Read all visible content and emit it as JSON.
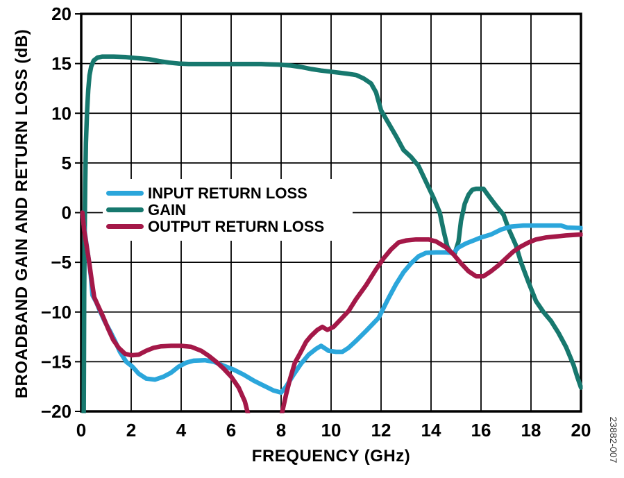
{
  "watermark": "23882-007",
  "chart_data": {
    "type": "line",
    "title": "",
    "xlabel": "FREQUENCY (GHz)",
    "ylabel": "BROADBAND GAIN AND RETURN LOSS (dB)",
    "xlim": [
      0,
      20
    ],
    "ylim": [
      -20,
      20
    ],
    "x_ticks": [
      0,
      2,
      4,
      6,
      8,
      10,
      12,
      14,
      16,
      18,
      20
    ],
    "y_ticks": [
      20,
      15,
      10,
      5,
      0,
      -5,
      -10,
      -15,
      -20
    ],
    "grid": true,
    "legend_position": "upper-left-inside",
    "grid_color": "#000000",
    "draw_order": [
      1,
      0,
      2
    ],
    "series": [
      {
        "name": "INPUT RETURN LOSS",
        "color": "#2BA6DB",
        "points": [
          [
            0.05,
            0
          ],
          [
            0.1,
            -1.2
          ],
          [
            0.2,
            -3
          ],
          [
            0.3,
            -4.7
          ],
          [
            0.38,
            -6.3
          ],
          [
            0.45,
            -8.3
          ],
          [
            0.6,
            -9
          ],
          [
            0.75,
            -9.9
          ],
          [
            0.95,
            -11
          ],
          [
            1.15,
            -11.9
          ],
          [
            1.35,
            -12.9
          ],
          [
            1.55,
            -14
          ],
          [
            1.8,
            -15
          ],
          [
            2.05,
            -15.5
          ],
          [
            2.3,
            -16.2
          ],
          [
            2.6,
            -16.7
          ],
          [
            2.95,
            -16.8
          ],
          [
            3.3,
            -16.5
          ],
          [
            3.6,
            -16.1
          ],
          [
            3.9,
            -15.5
          ],
          [
            4.2,
            -15.1
          ],
          [
            4.5,
            -14.9
          ],
          [
            4.95,
            -14.85
          ],
          [
            5.3,
            -15
          ],
          [
            5.7,
            -15.4
          ],
          [
            6.1,
            -15.8
          ],
          [
            6.5,
            -16.3
          ],
          [
            6.9,
            -16.9
          ],
          [
            7.3,
            -17.4
          ],
          [
            7.7,
            -17.9
          ],
          [
            8,
            -18.1
          ],
          [
            8.2,
            -17.5
          ],
          [
            8.5,
            -16.3
          ],
          [
            8.8,
            -15.2
          ],
          [
            9.1,
            -14.3
          ],
          [
            9.4,
            -13.7
          ],
          [
            9.6,
            -13.4
          ],
          [
            9.9,
            -13.9
          ],
          [
            10.2,
            -14
          ],
          [
            10.45,
            -14
          ],
          [
            10.7,
            -13.6
          ],
          [
            11,
            -12.9
          ],
          [
            11.4,
            -11.9
          ],
          [
            11.9,
            -10.6
          ],
          [
            12.3,
            -8.6
          ],
          [
            12.6,
            -7.2
          ],
          [
            12.9,
            -6
          ],
          [
            13.2,
            -5.1
          ],
          [
            13.5,
            -4.4
          ],
          [
            13.8,
            -4.05
          ],
          [
            14.2,
            -4
          ],
          [
            14.6,
            -4
          ],
          [
            14.9,
            -4.05
          ],
          [
            15.1,
            -3.5
          ],
          [
            15.4,
            -3.1
          ],
          [
            15.7,
            -2.8
          ],
          [
            16,
            -2.5
          ],
          [
            16.4,
            -2.2
          ],
          [
            16.8,
            -1.7
          ],
          [
            17.2,
            -1.4
          ],
          [
            17.7,
            -1.3
          ],
          [
            18.5,
            -1.3
          ],
          [
            19.2,
            -1.3
          ],
          [
            19.45,
            -1.5
          ],
          [
            20,
            -1.55
          ]
        ]
      },
      {
        "name": "GAIN",
        "color": "#17786E",
        "points": [
          [
            0.1,
            -21
          ],
          [
            0.11,
            -14
          ],
          [
            0.12,
            -8
          ],
          [
            0.14,
            -2
          ],
          [
            0.16,
            3
          ],
          [
            0.19,
            7
          ],
          [
            0.23,
            10
          ],
          [
            0.28,
            12.3
          ],
          [
            0.33,
            13.8
          ],
          [
            0.4,
            14.7
          ],
          [
            0.5,
            15.3
          ],
          [
            0.65,
            15.6
          ],
          [
            0.85,
            15.7
          ],
          [
            1.3,
            15.7
          ],
          [
            1.8,
            15.65
          ],
          [
            2.2,
            15.55
          ],
          [
            2.7,
            15.45
          ],
          [
            3.1,
            15.25
          ],
          [
            3.5,
            15.1
          ],
          [
            3.9,
            15
          ],
          [
            4.3,
            14.95
          ],
          [
            5.2,
            14.95
          ],
          [
            6.2,
            14.95
          ],
          [
            7.2,
            14.95
          ],
          [
            7.9,
            14.9
          ],
          [
            8.4,
            14.8
          ],
          [
            8.8,
            14.65
          ],
          [
            9.2,
            14.45
          ],
          [
            9.6,
            14.3
          ],
          [
            10.1,
            14.15
          ],
          [
            10.6,
            14
          ],
          [
            11,
            13.85
          ],
          [
            11.3,
            13.5
          ],
          [
            11.6,
            13
          ],
          [
            11.8,
            12.1
          ],
          [
            12,
            10.3
          ],
          [
            12.3,
            9
          ],
          [
            12.6,
            7.7
          ],
          [
            12.9,
            6.3
          ],
          [
            13.2,
            5.6
          ],
          [
            13.5,
            4.7
          ],
          [
            13.8,
            3.1
          ],
          [
            14.1,
            1.5
          ],
          [
            14.35,
            0
          ],
          [
            14.5,
            -1.8
          ],
          [
            14.65,
            -3.4
          ],
          [
            14.8,
            -4.05
          ],
          [
            14.95,
            -4.1
          ],
          [
            15.1,
            -2.9
          ],
          [
            15.2,
            -0.8
          ],
          [
            15.35,
            0.9
          ],
          [
            15.5,
            1.8
          ],
          [
            15.65,
            2.3
          ],
          [
            15.8,
            2.4
          ],
          [
            16.1,
            2.4
          ],
          [
            16.3,
            1.7
          ],
          [
            16.6,
            0.7
          ],
          [
            16.9,
            -0.2
          ],
          [
            17.1,
            -1.6
          ],
          [
            17.4,
            -3.3
          ],
          [
            17.6,
            -5
          ],
          [
            17.9,
            -7
          ],
          [
            18.2,
            -8.9
          ],
          [
            18.5,
            -10
          ],
          [
            18.8,
            -10.9
          ],
          [
            19.1,
            -12.1
          ],
          [
            19.4,
            -13.5
          ],
          [
            19.7,
            -15.3
          ],
          [
            19.85,
            -16.5
          ],
          [
            20,
            -17.6
          ]
        ]
      },
      {
        "name": "OUTPUT RETURN LOSS",
        "color": "#A41848",
        "points": [
          [
            0.05,
            0
          ],
          [
            0.12,
            -1.8
          ],
          [
            0.22,
            -3.4
          ],
          [
            0.32,
            -5
          ],
          [
            0.42,
            -6.8
          ],
          [
            0.52,
            -8.5
          ],
          [
            0.68,
            -9.4
          ],
          [
            0.88,
            -10.5
          ],
          [
            1.08,
            -11.7
          ],
          [
            1.28,
            -12.8
          ],
          [
            1.5,
            -13.6
          ],
          [
            1.75,
            -14.2
          ],
          [
            2,
            -14.35
          ],
          [
            2.3,
            -14.3
          ],
          [
            2.6,
            -13.9
          ],
          [
            2.9,
            -13.6
          ],
          [
            3.2,
            -13.45
          ],
          [
            3.6,
            -13.4
          ],
          [
            4,
            -13.4
          ],
          [
            4.4,
            -13.5
          ],
          [
            4.8,
            -13.9
          ],
          [
            5.1,
            -14.4
          ],
          [
            5.4,
            -15
          ],
          [
            5.7,
            -15.7
          ],
          [
            6,
            -16.5
          ],
          [
            6.3,
            -17.6
          ],
          [
            6.55,
            -19
          ],
          [
            6.75,
            -21
          ],
          [
            7.9,
            -21.5
          ],
          [
            8.05,
            -20
          ],
          [
            8.2,
            -18.3
          ],
          [
            8.35,
            -16.8
          ],
          [
            8.55,
            -15.1
          ],
          [
            8.75,
            -14.2
          ],
          [
            9,
            -13
          ],
          [
            9.2,
            -12.4
          ],
          [
            9.45,
            -11.8
          ],
          [
            9.65,
            -11.5
          ],
          [
            9.85,
            -11.8
          ],
          [
            10.1,
            -11.5
          ],
          [
            10.4,
            -10.7
          ],
          [
            10.7,
            -9.9
          ],
          [
            11,
            -8.7
          ],
          [
            11.4,
            -7.3
          ],
          [
            11.8,
            -5.7
          ],
          [
            12.1,
            -4.6
          ],
          [
            12.4,
            -3.7
          ],
          [
            12.7,
            -3
          ],
          [
            13,
            -2.8
          ],
          [
            13.4,
            -2.7
          ],
          [
            13.9,
            -2.7
          ],
          [
            14.2,
            -2.9
          ],
          [
            14.6,
            -3.5
          ],
          [
            14.9,
            -4.2
          ],
          [
            15.2,
            -5.1
          ],
          [
            15.5,
            -5.9
          ],
          [
            15.8,
            -6.4
          ],
          [
            16.1,
            -6.4
          ],
          [
            16.4,
            -5.9
          ],
          [
            16.7,
            -5.3
          ],
          [
            17,
            -4.6
          ],
          [
            17.3,
            -3.9
          ],
          [
            17.6,
            -3.4
          ],
          [
            17.9,
            -3
          ],
          [
            18.2,
            -2.7
          ],
          [
            18.6,
            -2.5
          ],
          [
            19,
            -2.4
          ],
          [
            19.4,
            -2.3
          ],
          [
            20,
            -2.2
          ]
        ]
      }
    ]
  }
}
